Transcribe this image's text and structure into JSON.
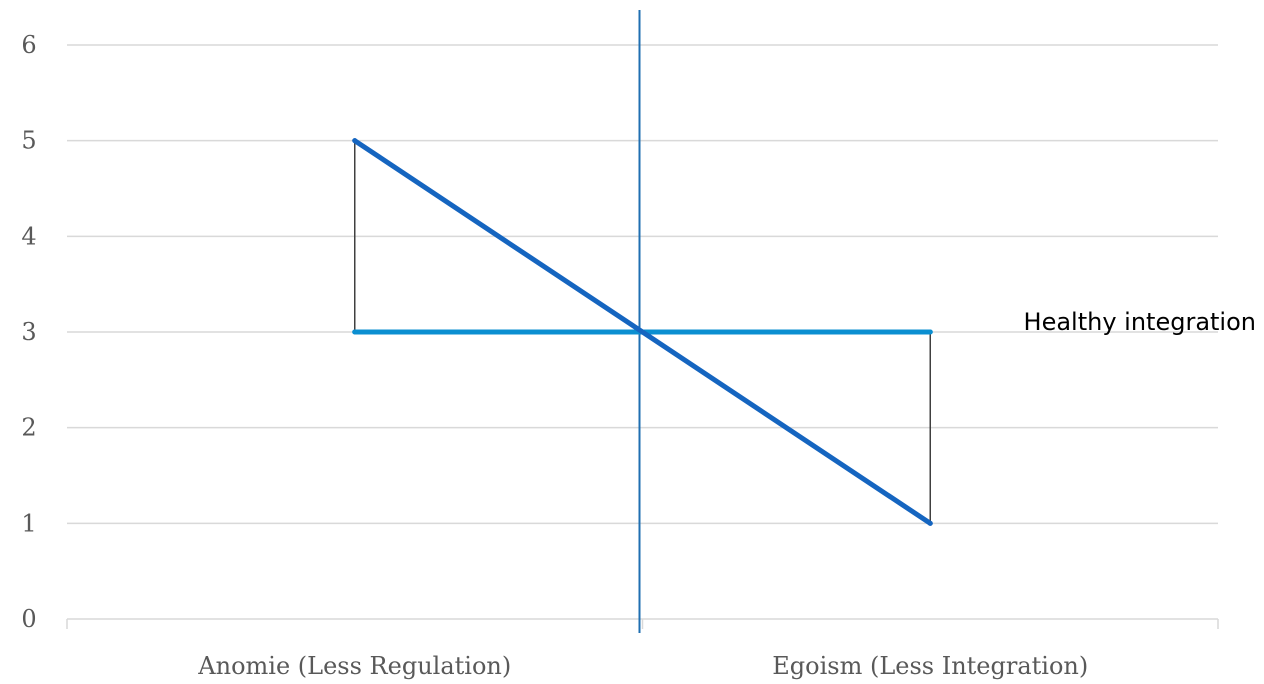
{
  "chart_data": {
    "type": "line",
    "categories": [
      "Anomie (Less Regulation)",
      "Egoism (Less Integration)"
    ],
    "series": [
      {
        "values": [
          5,
          1
        ],
        "color": "#1565C0"
      },
      {
        "values": [
          3,
          3
        ],
        "color": "#0B8FD1"
      }
    ],
    "annotations": [
      {
        "text": "Healthy integration",
        "y": 3
      }
    ],
    "ylim": [
      0,
      6
    ],
    "yticks": [
      0,
      1,
      2,
      3,
      4,
      5,
      6
    ],
    "grid": true,
    "title": "",
    "xlabel": "",
    "ylabel": "",
    "colors": {
      "grid": "#d9d9d9",
      "divider": "#1F6FB2",
      "connector": "#404040",
      "text": "#595959"
    }
  }
}
